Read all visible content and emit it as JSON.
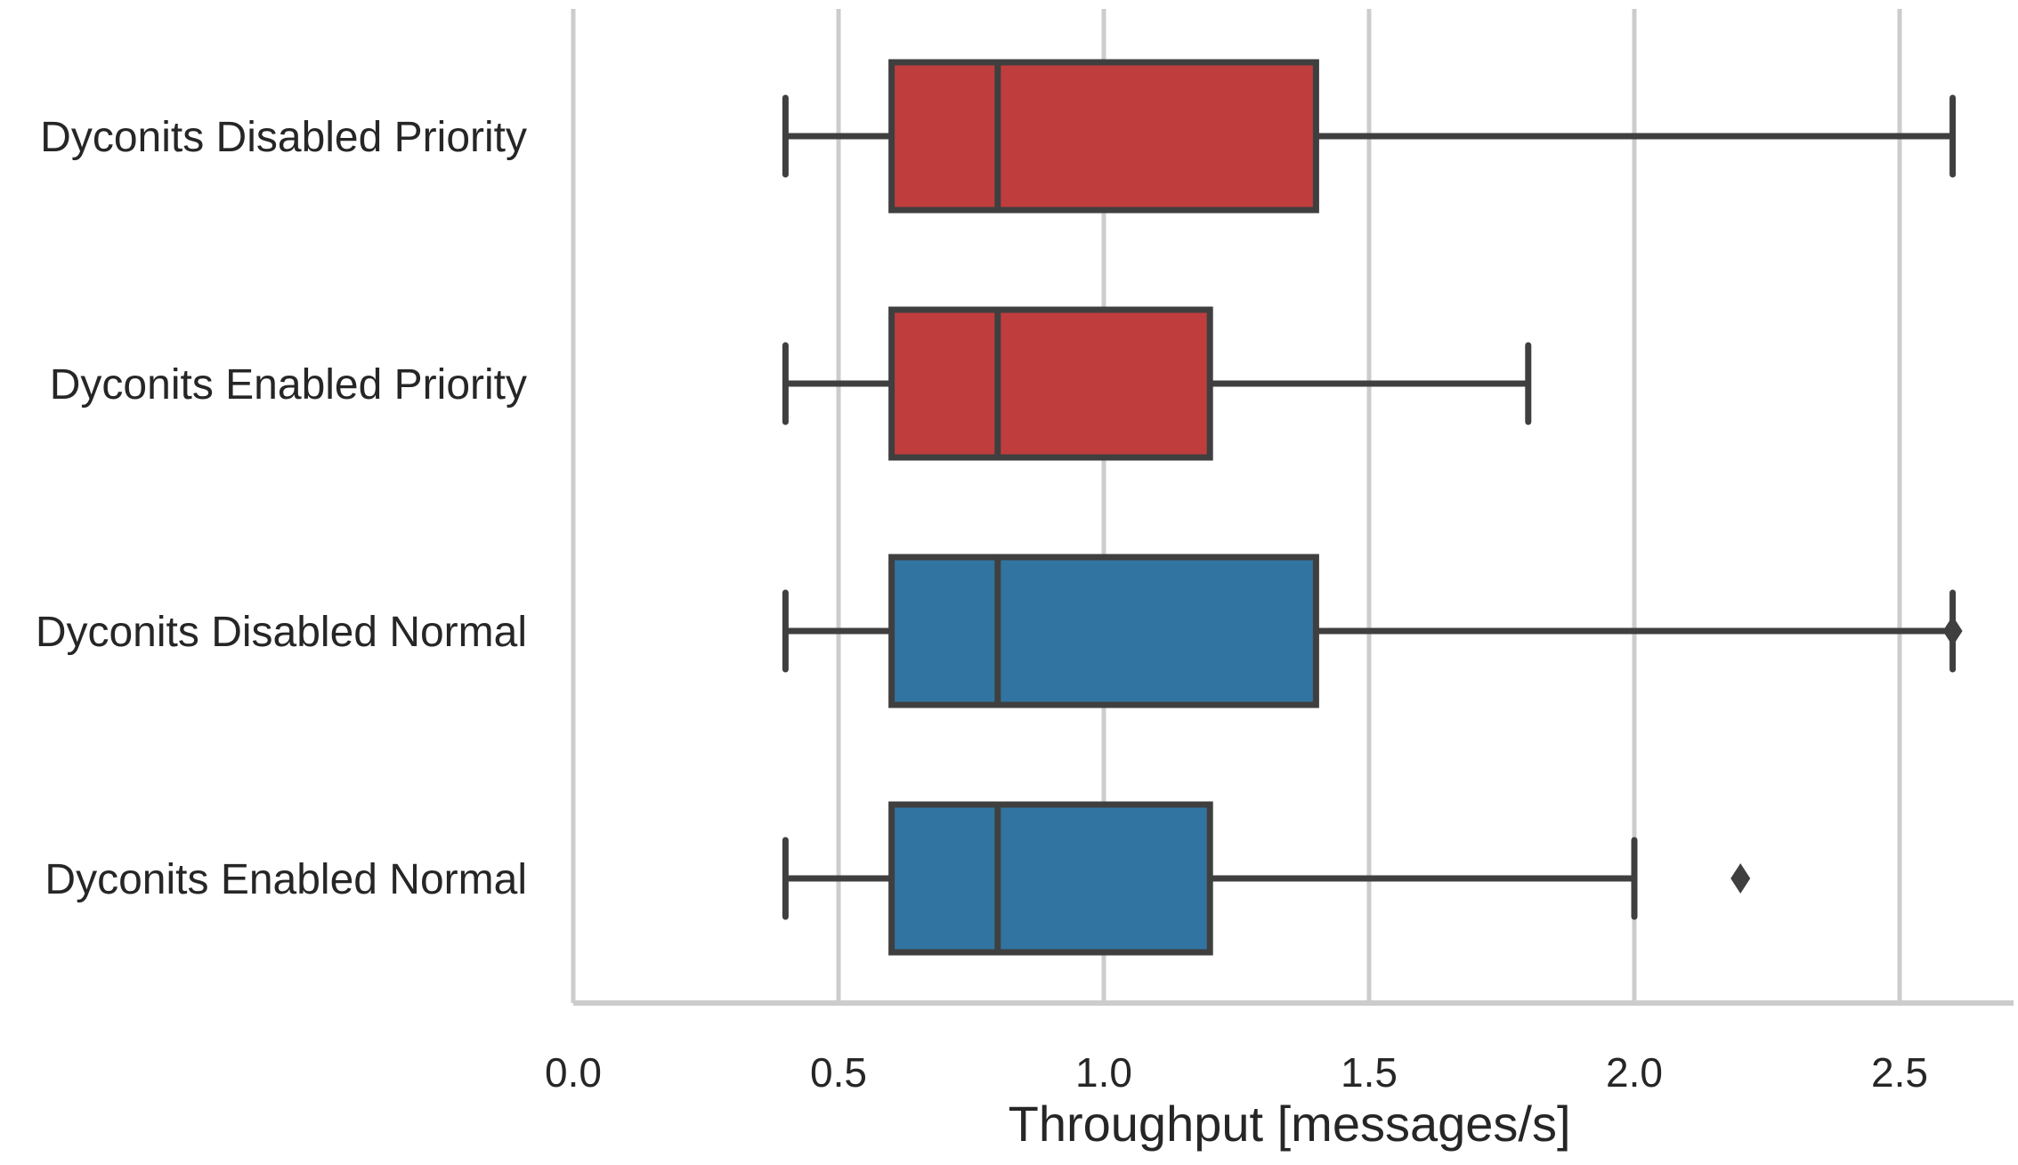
{
  "chart_data": {
    "type": "box",
    "orientation": "horizontal",
    "title": "",
    "xlabel": "Throughput [messages/s]",
    "ylabel": "",
    "xlim": [
      0.0,
      2.72
    ],
    "xticks": [
      0.0,
      0.5,
      1.0,
      1.5,
      2.0,
      2.5
    ],
    "xtick_labels": [
      "0.0",
      "0.5",
      "1.0",
      "1.5",
      "2.0",
      "2.5"
    ],
    "grid": "vertical",
    "categories": [
      "Dyconits Disabled Priority",
      "Dyconits Enabled Priority",
      "Dyconits Disabled Normal",
      "Dyconits Enabled Normal"
    ],
    "boxes": [
      {
        "label": "Dyconits Disabled Priority",
        "whisker_low": 0.4,
        "q1": 0.6,
        "median": 0.8,
        "q3": 1.4,
        "whisker_high": 2.6,
        "outliers": [],
        "color": "#c03d3e"
      },
      {
        "label": "Dyconits Enabled Priority",
        "whisker_low": 0.4,
        "q1": 0.6,
        "median": 0.8,
        "q3": 1.2,
        "whisker_high": 1.8,
        "outliers": [],
        "color": "#c03d3e"
      },
      {
        "label": "Dyconits Disabled Normal",
        "whisker_low": 0.4,
        "q1": 0.6,
        "median": 0.8,
        "q3": 1.4,
        "whisker_high": 2.6,
        "outliers": [
          2.6
        ],
        "color": "#3274a1"
      },
      {
        "label": "Dyconits Enabled Normal",
        "whisker_low": 0.4,
        "q1": 0.6,
        "median": 0.8,
        "q3": 1.2,
        "whisker_high": 2.0,
        "outliers": [
          2.2
        ],
        "color": "#3274a1"
      }
    ],
    "colors": {
      "line": "#3f3f3f",
      "grid": "#cccccc",
      "priority": "#c03d3e",
      "normal": "#3274a1"
    }
  }
}
